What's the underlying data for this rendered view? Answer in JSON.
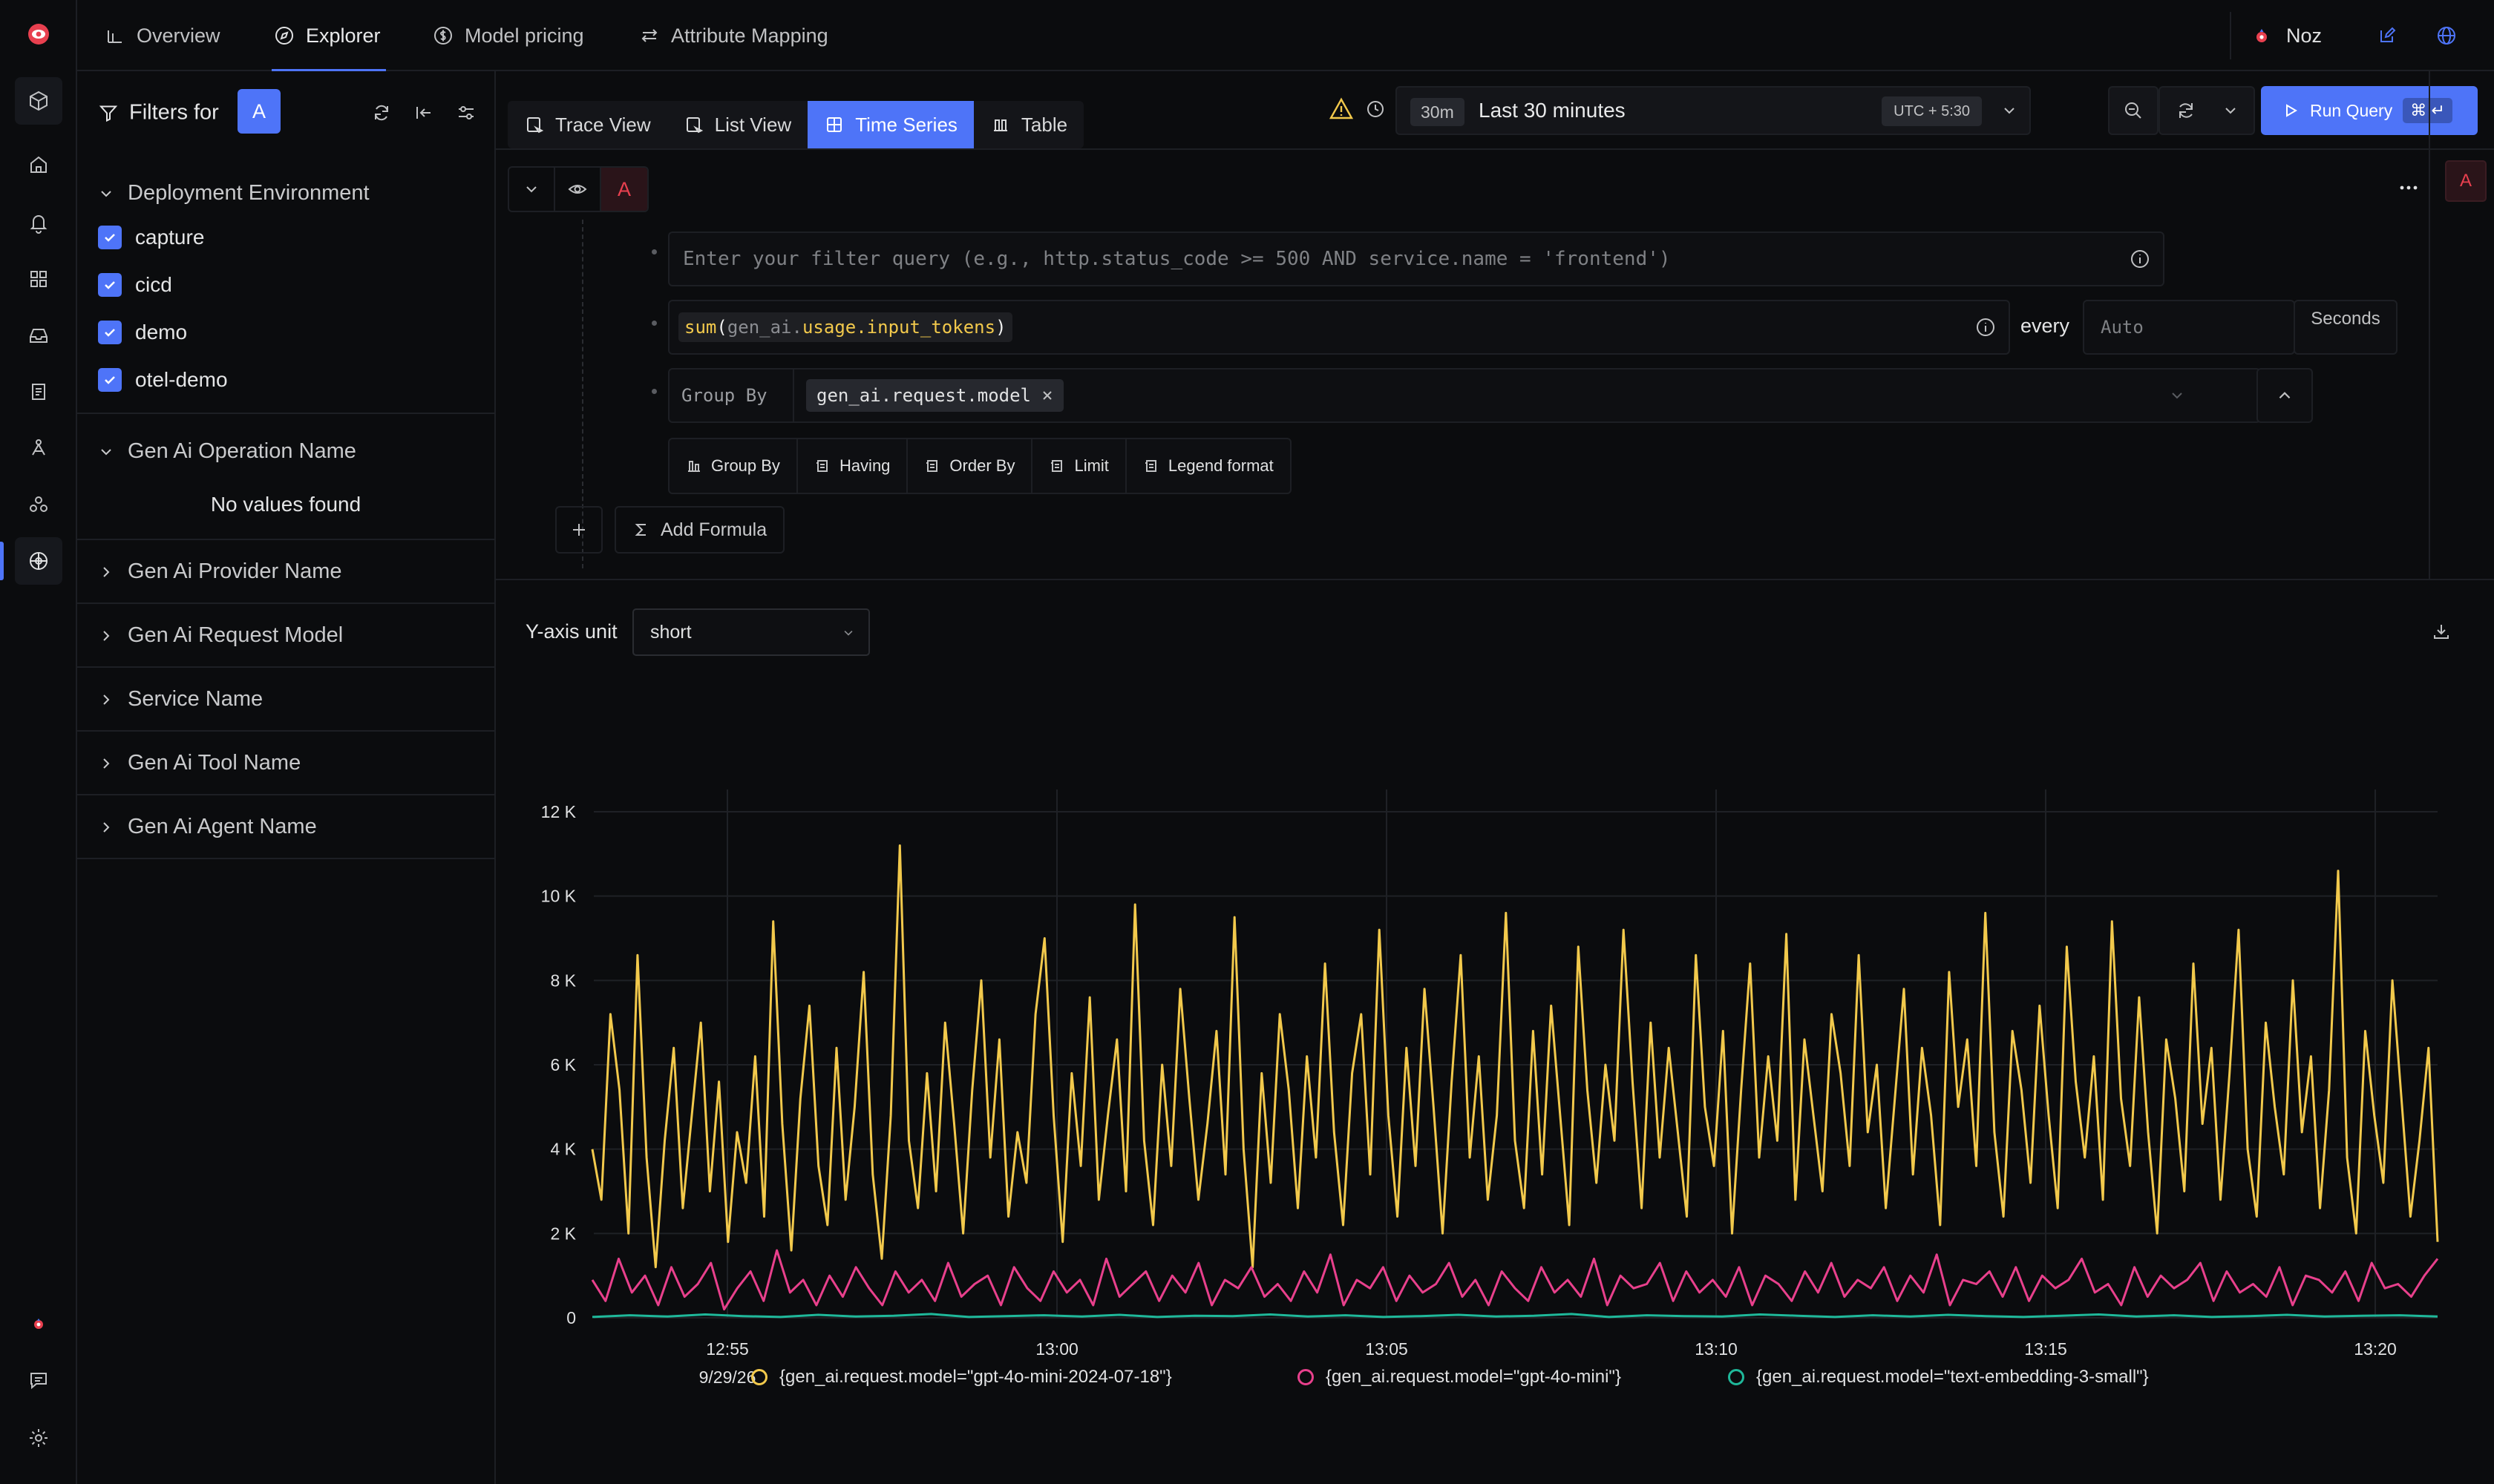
{
  "nav": {
    "tabs": [
      {
        "label": "Overview",
        "icon": "bar-chart-icon"
      },
      {
        "label": "Explorer",
        "icon": "compass-icon"
      },
      {
        "label": "Model pricing",
        "icon": "dollar-icon"
      },
      {
        "label": "Attribute Mapping",
        "icon": "swap-icon"
      }
    ],
    "user_name": "Noz"
  },
  "filters": {
    "title": "Filters for",
    "query_label": "A",
    "sections": [
      {
        "title": "Deployment Environment",
        "expanded": true,
        "values": [
          "capture",
          "cicd",
          "demo",
          "otel-demo"
        ]
      },
      {
        "title": "Gen Ai Operation Name",
        "expanded": true,
        "empty_text": "No values found"
      },
      {
        "title": "Gen Ai Provider Name",
        "expanded": false
      },
      {
        "title": "Gen Ai Request Model",
        "expanded": false
      },
      {
        "title": "Service Name",
        "expanded": false
      },
      {
        "title": "Gen Ai Tool Name",
        "expanded": false
      },
      {
        "title": "Gen Ai Agent Name",
        "expanded": false
      }
    ]
  },
  "views": [
    "Trace View",
    "List View",
    "Time Series",
    "Table"
  ],
  "active_view": "Time Series",
  "time": {
    "badge": "30m",
    "label": "Last 30 minutes",
    "timezone": "UTC + 5:30"
  },
  "run_button": {
    "label": "Run Query",
    "shortcut": "⌘ ↵"
  },
  "query": {
    "name": "A",
    "filter_placeholder": "Enter your filter query (e.g., http.status_code >= 500 AND service.name = 'frontend')",
    "aggregation": {
      "fn": "sum",
      "arg_prefix": "gen_ai.",
      "arg_rest": "usage.input_tokens"
    },
    "every_label": "every",
    "every_placeholder": "Auto",
    "every_unit": "Seconds",
    "group_by_label": "Group By",
    "group_by_chip": "gen_ai.request.model",
    "options": [
      "Group By",
      "Having",
      "Order By",
      "Limit",
      "Legend format"
    ],
    "add_formula": "Add Formula"
  },
  "yaxis": {
    "label": "Y-axis unit",
    "value": "short"
  },
  "chart_data": {
    "type": "line",
    "yticks": [
      "0",
      "2 K",
      "4 K",
      "6 K",
      "8 K",
      "10 K",
      "12 K"
    ],
    "ylim": [
      0,
      12000
    ],
    "xticks": [
      {
        "time": "12:55",
        "date": "9/29/26"
      },
      {
        "time": "13:00"
      },
      {
        "time": "13:05"
      },
      {
        "time": "13:10"
      },
      {
        "time": "13:15"
      },
      {
        "time": "13:20"
      }
    ],
    "x_start": "12:53",
    "x_end": "13:21",
    "series": [
      {
        "name": "{gen_ai.request.model=\"gpt-4o-mini-2024-07-18\"}",
        "color": "#f2c94c",
        "values": [
          4000,
          2800,
          7200,
          5400,
          2000,
          8600,
          3800,
          1200,
          4200,
          6400,
          2600,
          4800,
          7000,
          3000,
          5600,
          1800,
          4400,
          3200,
          6200,
          2400,
          9400,
          4600,
          1600,
          5200,
          7400,
          3600,
          2200,
          6400,
          2800,
          5000,
          8200,
          3400,
          1400,
          4800,
          11200,
          4200,
          2600,
          5800,
          3000,
          7000,
          4600,
          2000,
          5400,
          8000,
          3800,
          6600,
          2400,
          4400,
          3200,
          7200,
          9000,
          4800,
          1800,
          5800,
          3600,
          7600,
          2800,
          4800,
          6600,
          3000,
          9800,
          4200,
          2200,
          6000,
          3600,
          7800,
          5200,
          2800,
          4600,
          6800,
          3400,
          9500,
          4000,
          1200,
          5800,
          3200,
          7200,
          5400,
          2600,
          6200,
          3800,
          8400,
          4400,
          2200,
          5800,
          7200,
          3400,
          9200,
          4800,
          2400,
          6400,
          3600,
          7800,
          5000,
          2000,
          5600,
          8600,
          3800,
          6200,
          2800,
          4800,
          9600,
          4200,
          2600,
          6800,
          3400,
          7400,
          4800,
          2200,
          8800,
          5400,
          3200,
          6000,
          4200,
          9200,
          5600,
          2600,
          7000,
          3800,
          6400,
          4400,
          2400,
          8600,
          5000,
          3600,
          6800,
          2000,
          5400,
          8400,
          3800,
          6200,
          4200,
          9100,
          2800,
          6600,
          4800,
          3000,
          7200,
          5800,
          3600,
          8600,
          4400,
          6000,
          2600,
          5200,
          7800,
          3400,
          6400,
          4800,
          2200,
          8200,
          5000,
          6600,
          3600,
          9600,
          4400,
          2400,
          6800,
          5400,
          3200,
          7400,
          4800,
          2600,
          8800,
          5600,
          3800,
          6200,
          2800,
          9400,
          5200,
          3600,
          7600,
          4400,
          2000,
          6600,
          5200,
          3000,
          8400,
          4600,
          6400,
          2800,
          5800,
          9200,
          4000,
          2400,
          7000,
          5000,
          3400,
          8000,
          4400,
          6200,
          2600,
          5400,
          10600,
          3800,
          2000,
          6800,
          4800,
          3200,
          8000,
          5200,
          2400,
          4200,
          6400,
          1800
        ]
      },
      {
        "name": "{gen_ai.request.model=\"gpt-4o-mini\"}",
        "color": "#e8408c",
        "values": [
          900,
          400,
          1400,
          600,
          1000,
          300,
          1200,
          500,
          800,
          1300,
          200,
          700,
          1100,
          400,
          1600,
          600,
          900,
          300,
          1000,
          500,
          1200,
          700,
          300,
          1100,
          600,
          900,
          400,
          1300,
          500,
          800,
          1000,
          300,
          1200,
          700,
          400,
          1100,
          600,
          900,
          300,
          1400,
          500,
          800,
          1100,
          400,
          1000,
          600,
          1300,
          300,
          900,
          700,
          1200,
          500,
          800,
          400,
          1100,
          600,
          1500,
          300,
          900,
          700,
          1200,
          400,
          1000,
          600,
          800,
          1300,
          500,
          900,
          300,
          1100,
          700,
          400,
          1200,
          600,
          900,
          500,
          1400,
          300,
          1000,
          700,
          800,
          1300,
          400,
          1100,
          600,
          900,
          500,
          1200,
          300,
          1000,
          800,
          400,
          1100,
          600,
          1300,
          500,
          900,
          700,
          1200,
          400,
          1000,
          600,
          1500,
          300,
          900,
          800,
          1100,
          500,
          1200,
          400,
          1000,
          700,
          900,
          1400,
          600,
          800,
          300,
          1200,
          500,
          1000,
          700,
          900,
          1300,
          400,
          1100,
          600,
          800,
          500,
          1200,
          300,
          1000,
          900,
          600,
          1100,
          400,
          1300,
          700,
          800,
          500,
          1000,
          1400
        ]
      },
      {
        "name": "{gen_ai.request.model=\"text-embedding-3-small\"}",
        "color": "#1fb89a",
        "values": [
          20,
          60,
          30,
          80,
          40,
          20,
          70,
          30,
          50,
          90,
          20,
          40,
          60,
          30,
          70,
          20,
          50,
          40,
          80,
          30,
          60,
          20,
          40,
          70,
          30,
          50,
          90,
          20,
          60,
          40,
          30,
          80,
          50,
          20,
          60,
          30,
          70,
          40,
          20,
          50,
          80,
          30,
          60,
          20,
          40,
          70,
          30,
          50,
          60,
          30
        ]
      }
    ]
  }
}
